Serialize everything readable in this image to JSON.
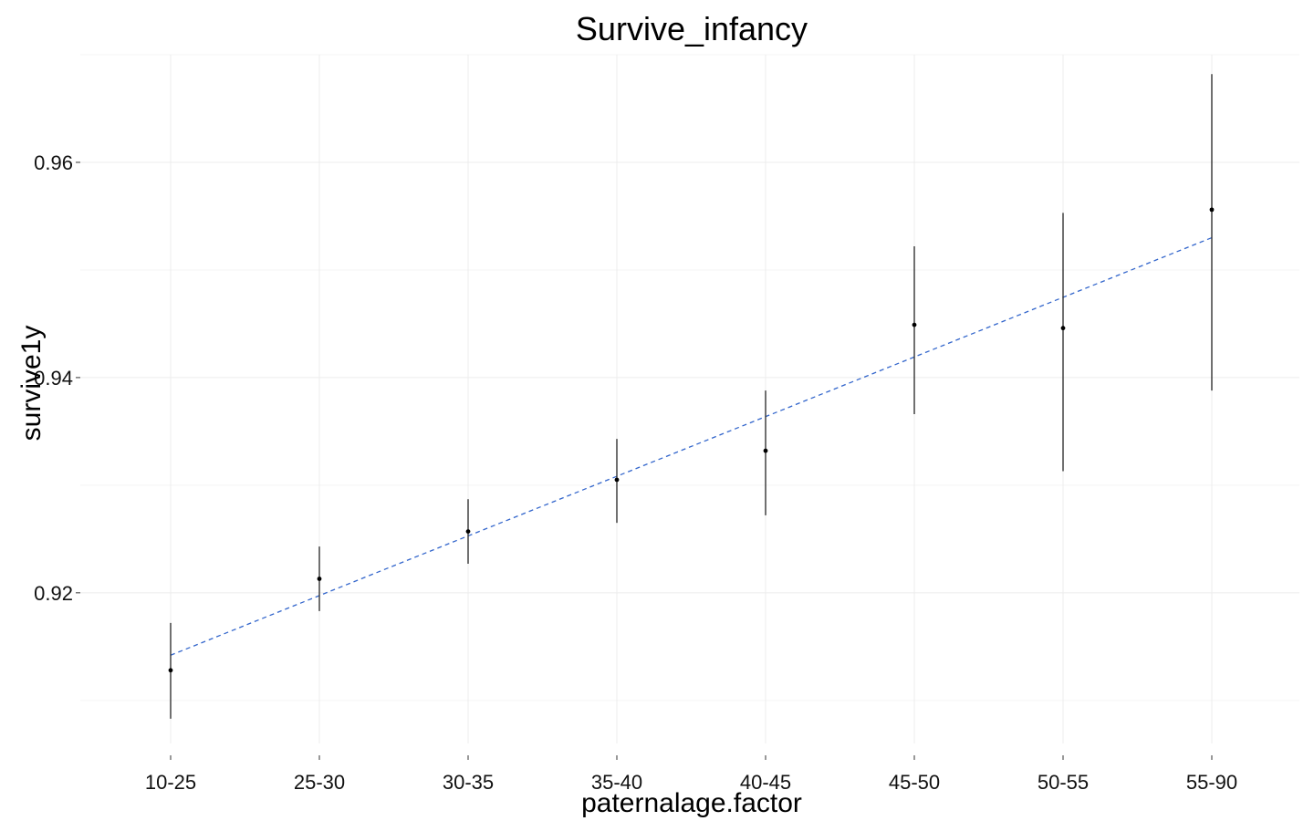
{
  "chart_data": {
    "type": "scatter",
    "title": "Survive_infancy",
    "xlabel": "paternalage.factor",
    "ylabel": "survive1y",
    "categories": [
      "10-25",
      "25-30",
      "30-35",
      "35-40",
      "40-45",
      "45-50",
      "50-55",
      "55-90"
    ],
    "series": [
      {
        "values": [
          0.9128,
          0.9213,
          0.9257,
          0.9305,
          0.9332,
          0.9449,
          0.9446,
          0.9556
        ],
        "lower": [
          0.9083,
          0.9183,
          0.9227,
          0.9265,
          0.9272,
          0.9366,
          0.9313,
          0.9388
        ],
        "upper": [
          0.9172,
          0.9243,
          0.9287,
          0.9343,
          0.9388,
          0.9522,
          0.9553,
          0.9682
        ]
      }
    ],
    "trend_line": {
      "style": "dashed",
      "color": "#3366cc",
      "start": 0.9142,
      "end": 0.953
    },
    "ylim": [
      0.906,
      0.97
    ],
    "yticks": [
      0.92,
      0.94,
      0.96
    ],
    "ytick_labels": [
      "0.92",
      "0.94",
      "0.96"
    ],
    "grid": true,
    "legend": "none"
  }
}
